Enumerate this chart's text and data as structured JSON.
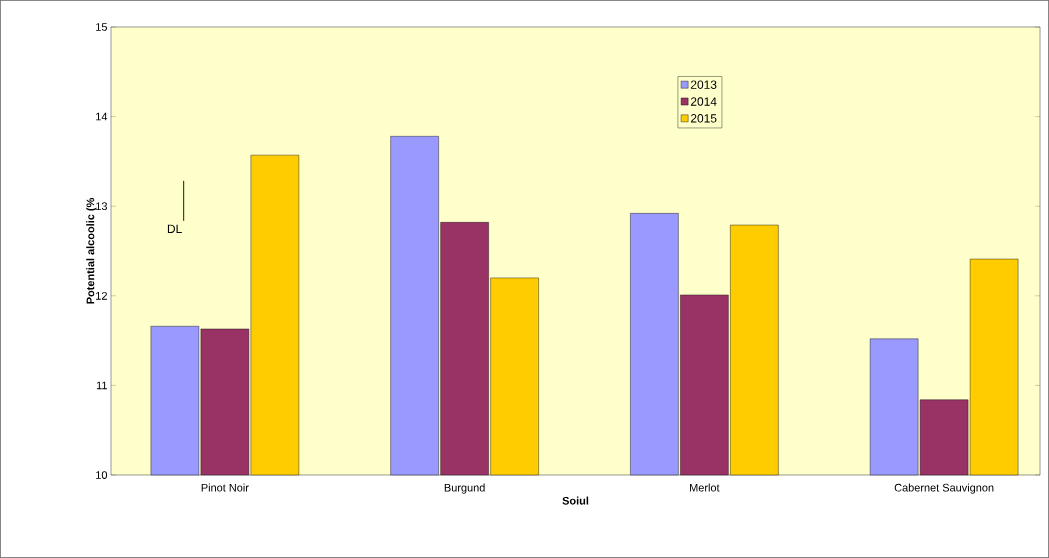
{
  "chart_data": {
    "type": "bar",
    "xlabel": "Soiul",
    "ylabel": "Potential alcoolic (%",
    "categories": [
      "Pinot Noir",
      "Burgund",
      "Merlot",
      "Cabernet Sauvignon"
    ],
    "series": [
      {
        "name": "2013",
        "color": "#9999ff",
        "values": [
          11.66,
          13.78,
          12.92,
          11.52
        ]
      },
      {
        "name": "2014",
        "color": "#993366",
        "values": [
          11.63,
          12.82,
          12.01,
          10.84
        ]
      },
      {
        "name": "2015",
        "color": "#ffcc00",
        "values": [
          13.57,
          12.2,
          12.79,
          12.41
        ]
      }
    ],
    "ylim": [
      10,
      15
    ],
    "yticks": [
      10,
      11,
      12,
      13,
      14,
      15
    ],
    "grid": false,
    "legend": "top right",
    "annotations": [
      "DL"
    ]
  }
}
